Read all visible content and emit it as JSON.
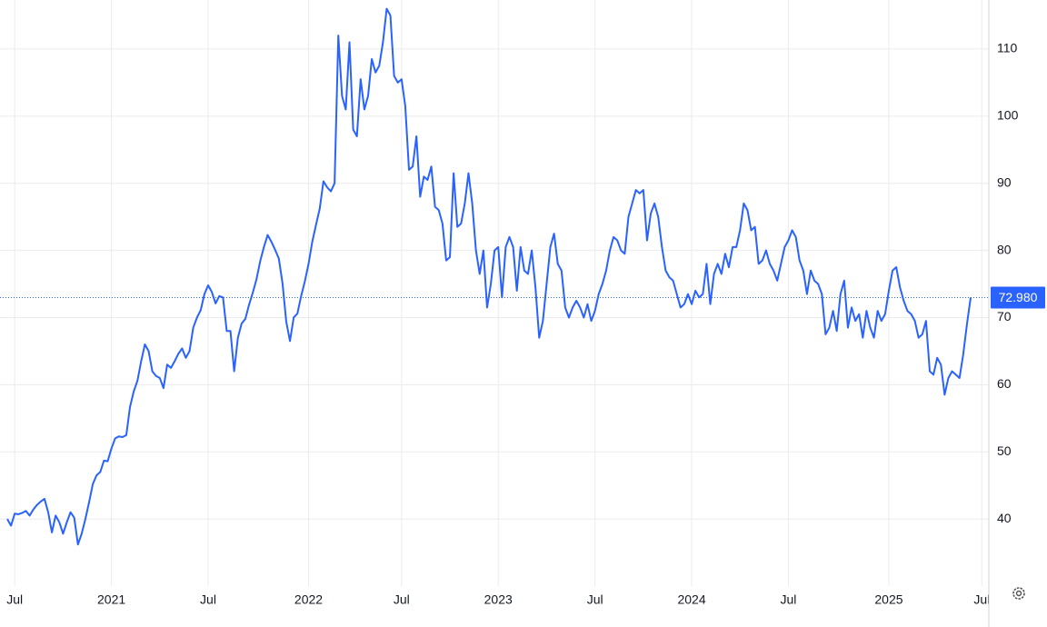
{
  "chart_data": {
    "type": "line",
    "categories": [
      null,
      null,
      "Jul",
      null,
      null,
      null,
      null,
      null,
      null,
      null,
      null,
      null,
      null,
      null,
      null,
      null,
      null,
      null,
      null,
      null,
      null,
      null,
      null,
      null,
      null,
      null,
      null,
      null,
      "2021",
      null,
      null,
      null,
      null,
      null,
      null,
      null,
      null,
      null,
      null,
      null,
      null,
      null,
      null,
      null,
      null,
      null,
      null,
      null,
      null,
      null,
      null,
      null,
      null,
      null,
      "Jul",
      null,
      null,
      null,
      null,
      null,
      null,
      null,
      null,
      null,
      null,
      null,
      null,
      null,
      null,
      null,
      null,
      null,
      null,
      null,
      null,
      null,
      null,
      null,
      null,
      null,
      null,
      "2022",
      null,
      null,
      null,
      null,
      null,
      null,
      null,
      null,
      null,
      null,
      null,
      null,
      null,
      null,
      null,
      null,
      null,
      null,
      null,
      null,
      null,
      null,
      null,
      null,
      "Jul",
      null,
      null,
      null,
      null,
      null,
      null,
      null,
      null,
      null,
      null,
      null,
      null,
      null,
      null,
      null,
      null,
      null,
      null,
      null,
      null,
      null,
      null,
      null,
      null,
      null,
      "2023",
      null,
      null,
      null,
      null,
      null,
      null,
      null,
      null,
      null,
      null,
      null,
      null,
      null,
      null,
      null,
      null,
      null,
      null,
      null,
      null,
      null,
      null,
      null,
      null,
      null,
      "Jul",
      null,
      null,
      null,
      null,
      null,
      null,
      null,
      null,
      null,
      null,
      null,
      null,
      null,
      null,
      null,
      null,
      null,
      null,
      null,
      null,
      null,
      null,
      null,
      null,
      null,
      "2024",
      null,
      null,
      null,
      null,
      null,
      null,
      null,
      null,
      null,
      null,
      null,
      null,
      null,
      null,
      null,
      null,
      null,
      null,
      null,
      null,
      null,
      null,
      null,
      null,
      null,
      "Jul",
      null,
      null,
      null,
      null,
      null,
      null,
      null,
      null,
      null,
      null,
      null,
      null,
      null,
      null,
      null,
      null,
      null,
      null,
      null,
      null,
      null,
      null,
      null,
      null,
      null,
      null,
      "2025",
      null,
      null,
      null,
      null,
      null,
      null,
      null,
      null,
      null,
      null,
      null,
      null,
      null,
      null,
      null,
      null,
      null,
      null,
      null,
      null,
      null,
      null,
      null,
      null,
      "Jul"
    ],
    "values": [
      40,
      39,
      40.8,
      40.7,
      40.9,
      41.2,
      40.5,
      41.4,
      42.1,
      42.6,
      43,
      41,
      38,
      40.5,
      39.5,
      37.8,
      39.5,
      41,
      40.2,
      36.2,
      37.8,
      40,
      42.5,
      45.2,
      46.5,
      47,
      48.7,
      48.6,
      50.5,
      52,
      52.3,
      52.2,
      52.5,
      56.7,
      59,
      60.6,
      63.5,
      66,
      65,
      62,
      61.3,
      61,
      59.5,
      63,
      62.5,
      63.5,
      64.6,
      65.4,
      64,
      65,
      68.5,
      70,
      71.1,
      73.5,
      74.8,
      73.8,
      72.1,
      73.2,
      73,
      68,
      68,
      62,
      67,
      69.1,
      69.8,
      71.9,
      73.7,
      75.7,
      78.4,
      80.5,
      82.3,
      81.3,
      80.1,
      78.8,
      75.1,
      69.4,
      66.5,
      70,
      70.6,
      73.2,
      75.4,
      78,
      81.3,
      83.8,
      86.2,
      90.3,
      89.4,
      88.8,
      90,
      112,
      103,
      101,
      111,
      98,
      97,
      105.5,
      101,
      103,
      108.5,
      106.5,
      107.5,
      111,
      116,
      115,
      106,
      105,
      105.5,
      101.5,
      92,
      92.5,
      97,
      88,
      91,
      90.5,
      92.5,
      86.5,
      86,
      84,
      78.5,
      79,
      91.5,
      83.5,
      84,
      87,
      91.5,
      87,
      80,
      76.5,
      80,
      71.5,
      75,
      80,
      80.5,
      73,
      80.5,
      82,
      80.5,
      74,
      80.5,
      77,
      76.5,
      80,
      74.5,
      67,
      69.5,
      75,
      80.5,
      82.5,
      78,
      77,
      71.5,
      70,
      71.5,
      72.5,
      71.5,
      70,
      72,
      69.5,
      71,
      73.5,
      75,
      77,
      80,
      82,
      81.5,
      80,
      79.5,
      85,
      87,
      89,
      88.5,
      89,
      81.5,
      85.5,
      87,
      85,
      80.5,
      77,
      76,
      75.5,
      73.5,
      71.5,
      72,
      73.5,
      72,
      74,
      73,
      73.5,
      78,
      72,
      76.5,
      78,
      76.5,
      79.5,
      77.5,
      80.5,
      80.5,
      83,
      87,
      86,
      83,
      83.5,
      78,
      78.5,
      80,
      78,
      77,
      75.5,
      78,
      80.5,
      81.5,
      83,
      82,
      78.5,
      77,
      73.5,
      77,
      75.5,
      75,
      73.5,
      67.5,
      68.5,
      71,
      68,
      73.5,
      75.5,
      68.5,
      71.5,
      69.5,
      70.5,
      67,
      71,
      68.5,
      67,
      71,
      69.5,
      70.5,
      74,
      77,
      77.5,
      74.5,
      72.5,
      71,
      70.5,
      69.5,
      67,
      67.5,
      69.5,
      62,
      61.5,
      64,
      63,
      58.5,
      61,
      62,
      61.5,
      61,
      64.5,
      69,
      72.98,
      null,
      null,
      null
    ],
    "color": "#2962ff",
    "ylim": [
      30,
      117.3
    ],
    "yticks": [
      40,
      50,
      60,
      70,
      80,
      90,
      100,
      110
    ],
    "y_axis_side": "right",
    "grid": true,
    "annotations": [
      {
        "value": 72.98,
        "label": "72.980"
      }
    ]
  }
}
